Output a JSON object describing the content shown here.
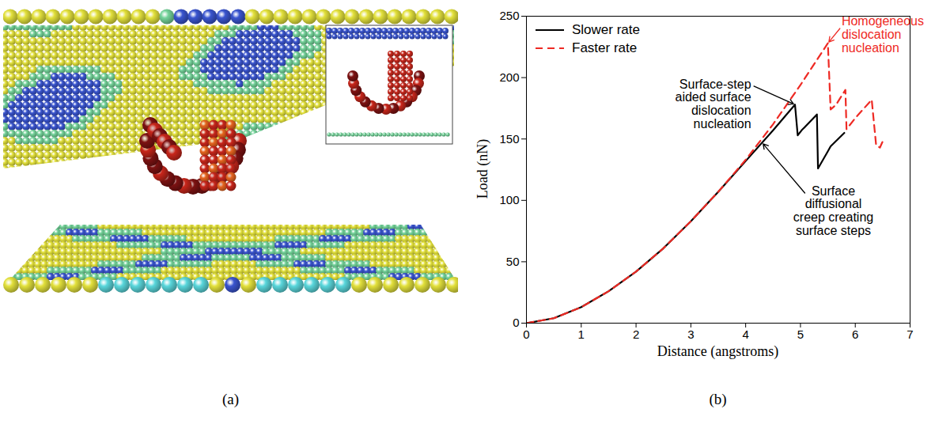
{
  "image_panel": {
    "caption": "(a)"
  },
  "chart_data": {
    "type": "line",
    "caption": "(b)",
    "x_label": "Distance (angstroms)",
    "y_label": "Load (nN)",
    "xlim": [
      0,
      7
    ],
    "xticks": [
      0,
      1,
      2,
      3,
      4,
      5,
      6,
      7
    ],
    "ylim": [
      0,
      250
    ],
    "yticks": [
      0,
      50,
      100,
      150,
      200,
      250
    ],
    "legend": "top-left",
    "series": [
      {
        "name": "Slower rate",
        "color": "#000000",
        "line_style": "solid",
        "x": [
          0,
          0.5,
          1,
          1.5,
          2,
          2.5,
          3,
          3.5,
          4,
          4.5,
          4.9,
          4.95,
          5.02,
          5.3,
          5.32,
          5.5,
          5.55,
          5.8
        ],
        "values": [
          0,
          4,
          13,
          26,
          42,
          61,
          83,
          107,
          132,
          157,
          178,
          153,
          157,
          170,
          126,
          140,
          144,
          155
        ]
      },
      {
        "name": "Faster rate",
        "color": "#ee2a24",
        "line_style": "dashed",
        "x": [
          0,
          0.5,
          1,
          1.5,
          2,
          2.5,
          3,
          3.5,
          4,
          4.5,
          5,
          5.5,
          5.55,
          5.65,
          5.82,
          5.84,
          6,
          6.3,
          6.38,
          6.45,
          6.5
        ],
        "values": [
          0,
          4,
          13,
          26,
          42,
          61,
          83,
          107,
          133,
          162,
          194,
          228,
          174,
          178,
          190,
          158,
          167,
          182,
          145,
          143,
          148
        ]
      }
    ],
    "annotations": [
      {
        "text": "Homogeneous\ndislocation\nnucleation",
        "color": "#ee2a24",
        "x": 5.5,
        "y": 228,
        "text_x": 5.75,
        "text_y": 250
      },
      {
        "text": "Surface-step\naided surface\ndislocation\nnucleation",
        "color": "#000000",
        "x": 4.9,
        "y": 178,
        "text_x": 4.1,
        "text_y": 199
      },
      {
        "text": "Surface\ndiffusional\ncreep creating\nsurface steps",
        "color": "#000000",
        "x": 4.3,
        "y": 147,
        "text_x": 5.6,
        "text_y": 112
      }
    ]
  }
}
